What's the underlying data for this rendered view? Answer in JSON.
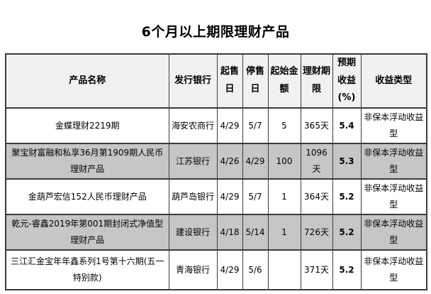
{
  "page": {
    "title": "6个月以上期限理财产品"
  },
  "table": {
    "columns": [
      {
        "key": "name",
        "label": "产品名称"
      },
      {
        "key": "bank",
        "label": "发行银行"
      },
      {
        "key": "start_date",
        "label": "起售日"
      },
      {
        "key": "end_date",
        "label": "停售日"
      },
      {
        "key": "min_amount",
        "label": "起始金额"
      },
      {
        "key": "term",
        "label": "理财期限"
      },
      {
        "key": "expected_yield",
        "label": "预期收益(%)"
      },
      {
        "key": "yield_type",
        "label": "收益类型"
      }
    ],
    "rows": [
      {
        "name": "金蝶理财2219期",
        "bank": "海安农商行",
        "start_date": "4/29",
        "end_date": "5/7",
        "min_amount": "5",
        "term": "365天",
        "expected_yield": "5.4",
        "yield_type": "非保本浮动收益型"
      },
      {
        "name": "聚宝财富融和私享36月第1909期人民币理财产品",
        "bank": "江苏银行",
        "start_date": "4/26",
        "end_date": "4/29",
        "min_amount": "100",
        "term": "1096天",
        "expected_yield": "5.3",
        "yield_type": "非保本浮动收益型"
      },
      {
        "name": "金葫芦宏信152人民币理财产品",
        "bank": "葫芦岛银行",
        "start_date": "4/29",
        "end_date": "5/7",
        "min_amount": "1",
        "term": "364天",
        "expected_yield": "5.2",
        "yield_type": "非保本浮动收益型"
      },
      {
        "name": "乾元-睿鑫2019年第001期封闭式净值型理财产品",
        "bank": "建设银行",
        "start_date": "4/18",
        "end_date": "5/14",
        "min_amount": "1",
        "term": "726天",
        "expected_yield": "5.2",
        "yield_type": "非保本浮动收益型"
      },
      {
        "name": "三江汇金宝年年鑫系列1号第十六期(五一特别款)",
        "bank": "青海银行",
        "start_date": "4/29",
        "end_date": "5/6",
        "min_amount": "",
        "term": "371天",
        "expected_yield": "5.2",
        "yield_type": "非保本浮动收益型"
      }
    ],
    "colors": {
      "header_bg": "#f1f1f1",
      "stripe_bg": "#c6c6c6",
      "border": "#3b3b3b",
      "numeric_text": "#39455c",
      "text": "#000000"
    }
  }
}
